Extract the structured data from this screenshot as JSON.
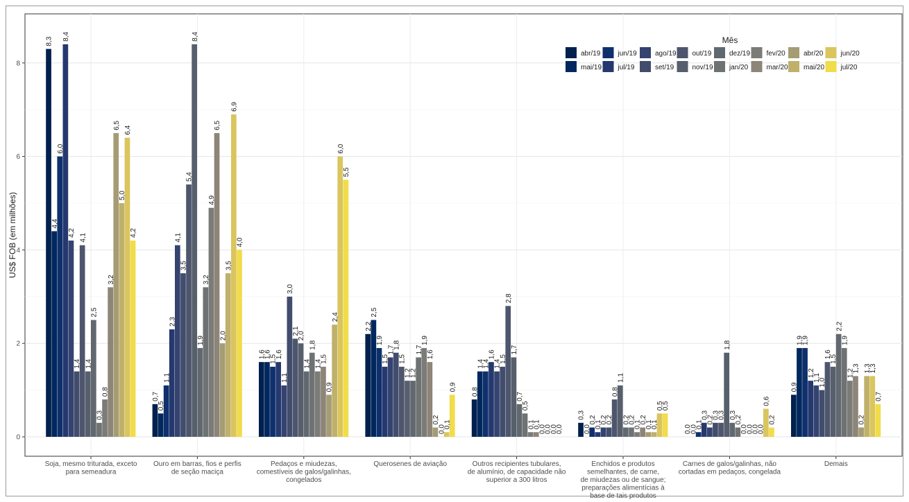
{
  "chart_data": {
    "type": "bar",
    "ylabel": "US$ FOB (em milhões)",
    "ylim": [
      0,
      8.9
    ],
    "yticks": [
      0,
      2,
      4,
      6,
      8
    ],
    "grid": true,
    "legend": {
      "title": "Mês",
      "position": "top-right"
    },
    "categories": [
      [
        "Soja, mesmo triturada, exceto",
        "para semeadura"
      ],
      [
        "Ouro em barras, fios e perfis",
        "de seção maciça"
      ],
      [
        "Pedaços e miudezas,",
        "comestíveis de galos/galinhas,",
        "congelados"
      ],
      [
        "Querosenes de aviação"
      ],
      [
        "Outros recipientes tubulares,",
        "de alumínio, de capacidade não",
        "superior a 300 litros"
      ],
      [
        "Enchidos e produtos",
        "semelhantes, de carne,",
        "de miudezas ou de sangue;",
        "preparações alimentícias à",
        "base de tais produtos"
      ],
      [
        "Carnes de galos/galinhas, não",
        "cortadas em pedaços, congelada"
      ],
      [
        "Demais"
      ]
    ],
    "series": [
      {
        "name": "abr/19",
        "color": "#00204d",
        "values": [
          8.3,
          0.7,
          1.6,
          2.2,
          0.8,
          0.3,
          0.0,
          0.9
        ]
      },
      {
        "name": "mai/19",
        "color": "#00285e",
        "values": [
          4.4,
          0.5,
          1.6,
          2.5,
          1.4,
          0.0,
          0.0,
          1.9
        ]
      },
      {
        "name": "jun/19",
        "color": "#0e306d",
        "values": [
          6.0,
          1.1,
          1.5,
          1.9,
          1.4,
          0.2,
          0.1,
          1.9
        ]
      },
      {
        "name": "jul/19",
        "color": "#25396f",
        "values": [
          8.4,
          2.3,
          1.6,
          1.5,
          1.6,
          0.1,
          0.3,
          1.2
        ]
      },
      {
        "name": "ago/19",
        "color": "#344370",
        "values": [
          4.2,
          4.1,
          1.1,
          1.7,
          1.4,
          0.2,
          0.2,
          1.1
        ]
      },
      {
        "name": "set/19",
        "color": "#424d6d",
        "values": [
          1.4,
          3.5,
          3.0,
          1.8,
          1.5,
          0.2,
          0.3,
          1.0
        ]
      },
      {
        "name": "out/19",
        "color": "#4d566d",
        "values": [
          4.1,
          5.4,
          2.1,
          1.5,
          2.8,
          0.8,
          0.3,
          1.6
        ]
      },
      {
        "name": "nov/19",
        "color": "#575f6d",
        "values": [
          1.4,
          8.4,
          2.0,
          1.2,
          1.7,
          1.1,
          1.8,
          1.5
        ]
      },
      {
        "name": "dez/19",
        "color": "#62686f",
        "values": [
          2.5,
          1.9,
          1.4,
          1.2,
          0.7,
          0.2,
          0.3,
          2.2
        ]
      },
      {
        "name": "jan/20",
        "color": "#6e7272",
        "values": [
          0.3,
          3.2,
          1.8,
          1.7,
          0.5,
          0.2,
          0.2,
          1.9
        ]
      },
      {
        "name": "fev/20",
        "color": "#7b7b78",
        "values": [
          0.8,
          4.9,
          1.4,
          1.9,
          0.1,
          0.1,
          0.0,
          1.2
        ]
      },
      {
        "name": "mar/20",
        "color": "#8c8578",
        "values": [
          3.2,
          6.5,
          1.5,
          1.6,
          0.1,
          0.2,
          0.0,
          1.3
        ]
      },
      {
        "name": "abr/20",
        "color": "#a59c74",
        "values": [
          6.5,
          2.0,
          0.9,
          0.2,
          0.0,
          0.1,
          0.0,
          0.2
        ]
      },
      {
        "name": "mai/20",
        "color": "#bfb06b",
        "values": [
          5.0,
          3.5,
          2.4,
          0.0,
          0.0,
          0.1,
          0.0,
          1.3
        ]
      },
      {
        "name": "jun/20",
        "color": "#dac55e",
        "values": [
          6.4,
          6.9,
          6.0,
          0.1,
          0.0,
          0.5,
          0.6,
          1.3
        ]
      },
      {
        "name": "jul/20",
        "color": "#f1dc4a",
        "values": [
          4.2,
          4.0,
          5.5,
          0.9,
          0.0,
          0.5,
          0.2,
          0.7
        ]
      }
    ],
    "value_labels": [
      [
        "8,3",
        "4,4",
        "6,0",
        "8,4",
        "4,2",
        "1,4",
        "4,1",
        "1,4",
        "2,5",
        "0,3",
        "0,8",
        "3,2",
        "6,5",
        "5,0",
        "6,4",
        "4,2"
      ],
      [
        "0,7",
        "0,5",
        "1,1",
        "2,3",
        "4,1",
        "3,5",
        "5,4",
        "8,4",
        "1,9",
        "3,2",
        "4,9",
        "6,5",
        "2,0",
        "3,5",
        "6,9",
        "4,0"
      ],
      [
        "1,6",
        "1,6",
        "1,5",
        "1,6",
        "1,1",
        "3,0",
        "2,1",
        "2,0",
        "1,4",
        "1,8",
        "1,4",
        "1,5",
        "0,9",
        "2,4",
        "6,0",
        "5,5"
      ],
      [
        "2,2",
        "2,5",
        "1,9",
        "1,5",
        "1,7",
        "1,8",
        "1,5",
        "1,2",
        "1,2",
        "1,7",
        "1,9",
        "1,6",
        "0,2",
        "0,0",
        "0,1",
        "0,9"
      ],
      [
        "0,8",
        "1,4",
        "1,4",
        "1,6",
        "1,4",
        "1,5",
        "2,8",
        "1,7",
        "0,7",
        "0,5",
        "0,1",
        "0,1",
        "0,0",
        "0,0",
        "0,0",
        "0,0"
      ],
      [
        "0,3",
        "0,0",
        "0,2",
        "0,1",
        "0,2",
        "0,2",
        "0,8",
        "1,1",
        "0,2",
        "0,2",
        "0,1",
        "0,2",
        "0,1",
        "0,1",
        "0,5",
        "0,5"
      ],
      [
        "0,0",
        "0,0",
        "0,1",
        "0,3",
        "0,2",
        "0,3",
        "0,3",
        "1,8",
        "0,3",
        "0,2",
        "0,0",
        "0,0",
        "0,0",
        "0,0",
        "0,6",
        "0,2"
      ],
      [
        "0,9",
        "1,9",
        "1,9",
        "1,2",
        "1,1",
        "1,0",
        "1,6",
        "1,5",
        "2,2",
        "1,9",
        "1,2",
        "1,3",
        "0,2",
        "1,3",
        "1,3",
        "0,7"
      ]
    ]
  }
}
